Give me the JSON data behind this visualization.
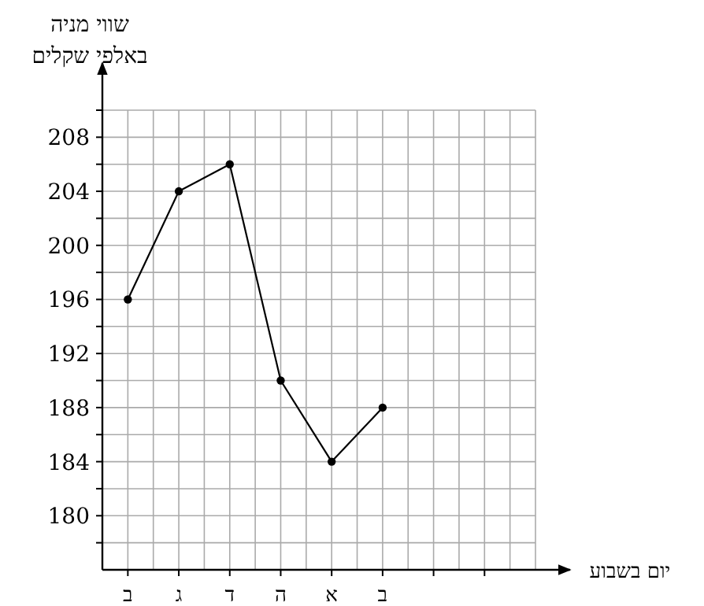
{
  "chart_data": {
    "type": "line",
    "ylabel": "שווי מניה\nבאלפי שקלים",
    "xlabel": "יום בשבוע",
    "categories": [
      "ב",
      "ג",
      "ד",
      "ה",
      "א",
      "ב",
      null,
      null
    ],
    "values": [
      196,
      204,
      206,
      190,
      184,
      188,
      null,
      null
    ],
    "color": "#000000",
    "marker": "circle",
    "line_style": "solid",
    "grid": true,
    "ylim": [
      176,
      210
    ],
    "yticks": [
      {
        "value": 178,
        "label": null
      },
      180,
      {
        "value": 182,
        "label": null
      },
      184,
      {
        "value": 186,
        "label": null
      },
      188,
      {
        "value": 190,
        "label": null
      },
      192,
      {
        "value": 194,
        "label": null
      },
      196,
      {
        "value": 198,
        "label": null
      },
      200,
      {
        "value": 202,
        "label": null
      },
      204,
      {
        "value": 206,
        "label": null
      },
      208,
      {
        "value": 210,
        "label": null
      }
    ]
  }
}
